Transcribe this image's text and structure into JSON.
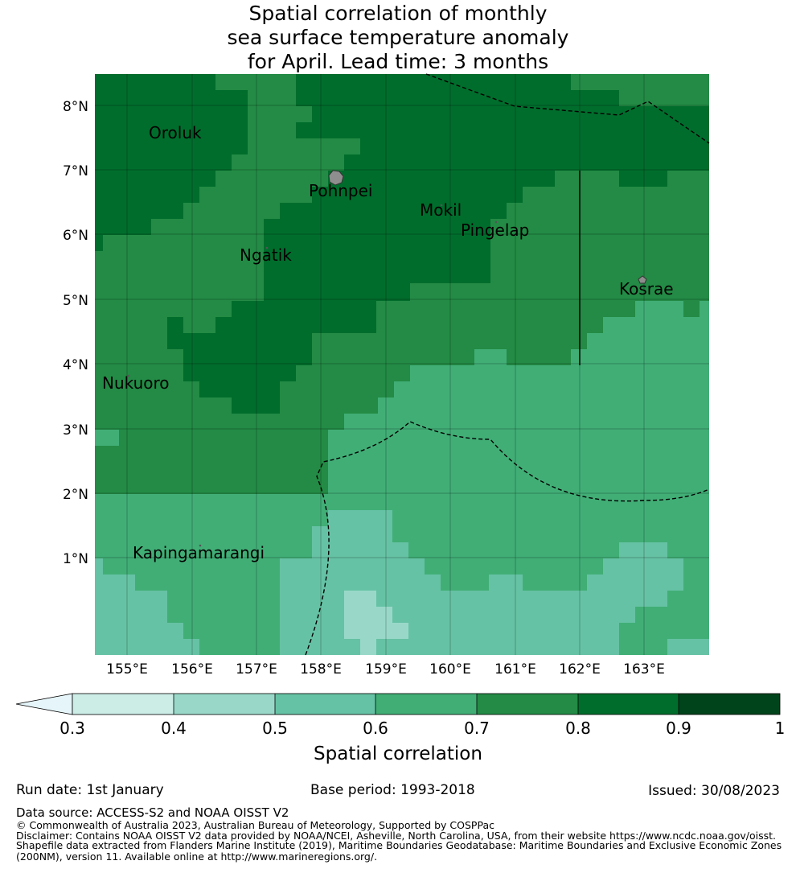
{
  "title": {
    "line1": "Spatial correlation of monthly",
    "line2": "sea surface temperature anomaly",
    "line3": "for April. Lead time: 3 months"
  },
  "map": {
    "lon_ticks": [
      "155°E",
      "156°E",
      "157°E",
      "158°E",
      "159°E",
      "160°E",
      "161°E",
      "162°E",
      "163°E"
    ],
    "lat_ticks": [
      "8°N",
      "7°N",
      "6°N",
      "5°N",
      "4°N",
      "3°N",
      "2°N",
      "1°N"
    ],
    "places": [
      {
        "name": "Oroluk"
      },
      {
        "name": "Pohnpei"
      },
      {
        "name": "Mokil"
      },
      {
        "name": "Pingelap"
      },
      {
        "name": "Ngatik"
      },
      {
        "name": "Kosrae"
      },
      {
        "name": "Nukuoro"
      },
      {
        "name": "Kapingamarangi"
      }
    ],
    "colors": {
      "c3": "#ccece6",
      "c4": "#99d8c9",
      "c5": "#66c2a4",
      "c6": "#41ae76",
      "c7": "#238b45",
      "c8": "#006d2c",
      "c9": "#00441b",
      "under": "#e5f5f9"
    }
  },
  "colorbar": {
    "ticks": [
      "0.3",
      "0.4",
      "0.5",
      "0.6",
      "0.7",
      "0.8",
      "0.9",
      "1"
    ],
    "label": "Spatial correlation"
  },
  "footer": {
    "run_date": "Run date: 1st January",
    "base_period": "Base period: 1993-2018",
    "issued": "Issued: 30/08/2023",
    "data_source": "Data source: ACCESS-S2 and NOAA OISST V2",
    "copyright": "© Commonwealth of Australia 2023, Australian Bureau of Meteorology, Supported by COSPPac",
    "disclaimer1": "Disclaimer: Contains NOAA OISST V2 data provided by NOAA/NCEI, Asheville, North Carolina, USA, from their website https://www.ncdc.noaa.gov/oisst.",
    "disclaimer2": "Shapefile data extracted from Flanders Marine Institute (2019), Maritime Boundaries Geodatabase: Maritime Boundaries and Exclusive Economic Zones",
    "disclaimer3": "(200NM), version 11. Available online at http://www.marineregions.org/."
  }
}
